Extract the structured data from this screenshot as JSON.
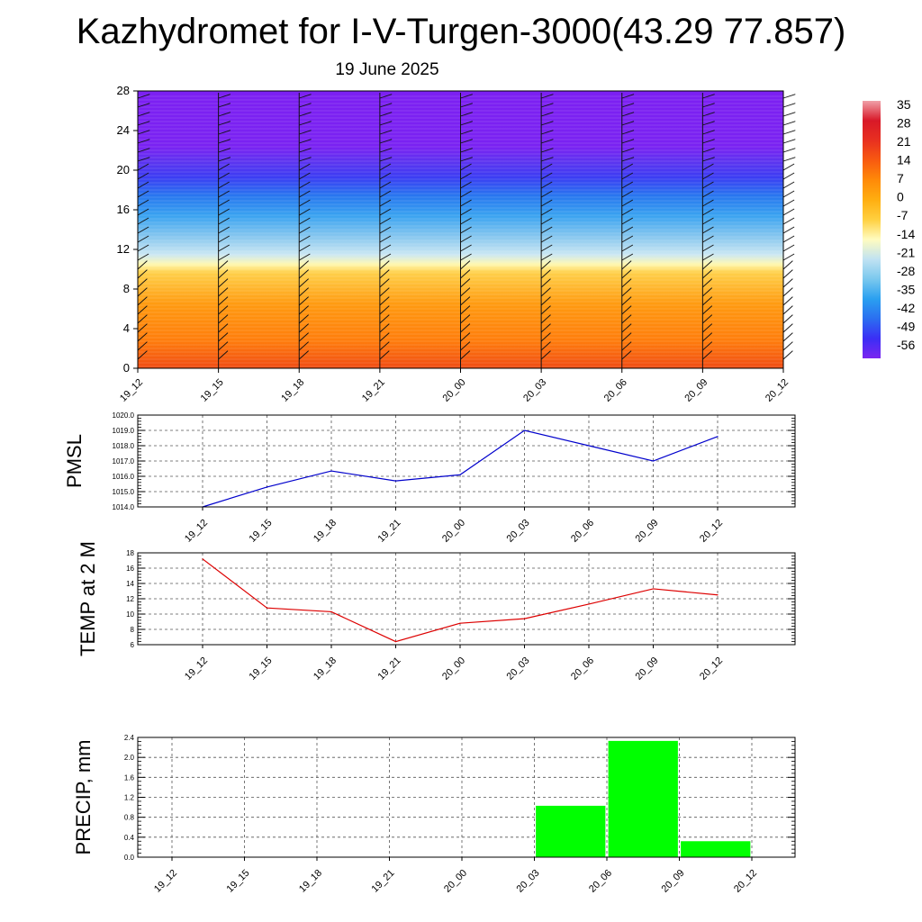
{
  "header": {
    "title": "Kazhydromet for I-V-Turgen-3000(43.29 77.857)",
    "date": "19 June 2025"
  },
  "chart_data": [
    {
      "type": "heatmap",
      "name": "temperature-height-section",
      "x_ticks": [
        "19_12",
        "19_15",
        "19_18",
        "19_21",
        "20_00",
        "20_03",
        "20_06",
        "20_09",
        "20_12"
      ],
      "y_ticks": [
        "0",
        "4",
        "8",
        "12",
        "16",
        "20",
        "24",
        "28"
      ],
      "ylim": [
        0,
        28
      ],
      "colorbar": {
        "labels": [
          "35",
          "28",
          "21",
          "14",
          "7",
          "0",
          "-7",
          "-14",
          "-21",
          "-28",
          "-35",
          "-42",
          "-49",
          "-56"
        ],
        "colors_low_to_high": [
          "#7b25f0",
          "#3b2ef5",
          "#2b6ef0",
          "#2aa0f0",
          "#7ac8ee",
          "#c0e2f2",
          "#fffcc0",
          "#ffd040",
          "#ffae10",
          "#ff8a08",
          "#f85a10",
          "#e83020",
          "#d81828",
          "#f0a0a8"
        ]
      },
      "profile_colors": [
        "#f04c14",
        "#ff7d0c",
        "#ff9a10",
        "#ffd04a",
        "#fff8b0",
        "#cbe7f3",
        "#8cc9ef",
        "#3aa3f0",
        "#2878ef",
        "#3c3cf3",
        "#5a35f0",
        "#7a22f2",
        "#7c20f2"
      ]
    },
    {
      "type": "line",
      "name": "pmsl",
      "ylabel": "PMSL",
      "color": "#0000cc",
      "x": [
        "19_12",
        "19_15",
        "19_18",
        "19_21",
        "20_00",
        "20_03",
        "20_06",
        "20_09",
        "20_12"
      ],
      "y": [
        1014.0,
        1015.3,
        1016.35,
        1015.7,
        1016.1,
        1019.0,
        1018.0,
        1017.0,
        1018.6
      ],
      "ylim": [
        1014.0,
        1020.0
      ],
      "y_ticks": [
        "1014.0",
        "1015.0",
        "1016.0",
        "1017.0",
        "1018.0",
        "1019.0",
        "1020.0"
      ],
      "grid": true
    },
    {
      "type": "line",
      "name": "temp-2m",
      "ylabel": "TEMP at 2 M",
      "color": "#dd0000",
      "x": [
        "19_12",
        "19_15",
        "19_18",
        "19_21",
        "20_00",
        "20_03",
        "20_06",
        "20_09",
        "20_12"
      ],
      "y": [
        17.2,
        10.8,
        10.3,
        6.4,
        8.8,
        9.4,
        11.3,
        13.3,
        12.5
      ],
      "ylim": [
        6,
        18
      ],
      "y_ticks": [
        "6",
        "8",
        "10",
        "12",
        "14",
        "16",
        "18"
      ],
      "grid": true
    },
    {
      "type": "bar",
      "name": "precip",
      "ylabel": "PRECIP, mm",
      "color": "#00ff00",
      "categories": [
        "19_12",
        "19_15",
        "19_18",
        "19_21",
        "20_00",
        "20_03",
        "20_06",
        "20_09",
        "20_12"
      ],
      "values": [
        0,
        0,
        0,
        0,
        0,
        1.03,
        2.33,
        0.32,
        0
      ],
      "ylim": [
        0,
        2.4
      ],
      "y_ticks": [
        "0.0",
        "0.4",
        "0.8",
        "1.2",
        "1.6",
        "2.0",
        "2.4"
      ],
      "grid": true
    }
  ]
}
